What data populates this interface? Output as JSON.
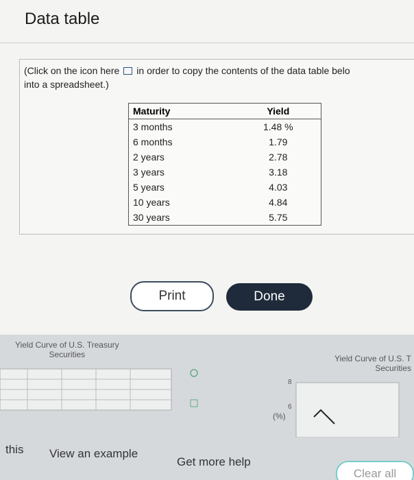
{
  "header": {
    "title": "Data table"
  },
  "instruction": {
    "line1a": "(Click on the icon here",
    "line1b": "in order to copy the contents of the data table belo",
    "line2": "into a spreadsheet.)"
  },
  "table": {
    "columns": [
      "Maturity",
      "Yield"
    ],
    "rows": [
      [
        "3 months",
        "1.48 %"
      ],
      [
        "6 months",
        "1.79"
      ],
      [
        "2 years",
        "2.78"
      ],
      [
        "3 years",
        "3.18"
      ],
      [
        "5 years",
        "4.03"
      ],
      [
        "10 years",
        "4.84"
      ],
      [
        "30 years",
        "5.75"
      ]
    ]
  },
  "buttons": {
    "print": "Print",
    "done": "Done"
  },
  "background": {
    "left_chart_title": [
      "Yield Curve of U.S. Treasury",
      "Securities"
    ],
    "right_chart_title": [
      "Yield Curve of U.S. T",
      "Securities"
    ],
    "right_axis_label": "(%)",
    "right_ticks": [
      "8",
      "6"
    ],
    "footer": {
      "left": "this",
      "example": "View an example",
      "help": "Get more help",
      "clear": "Clear all"
    }
  }
}
